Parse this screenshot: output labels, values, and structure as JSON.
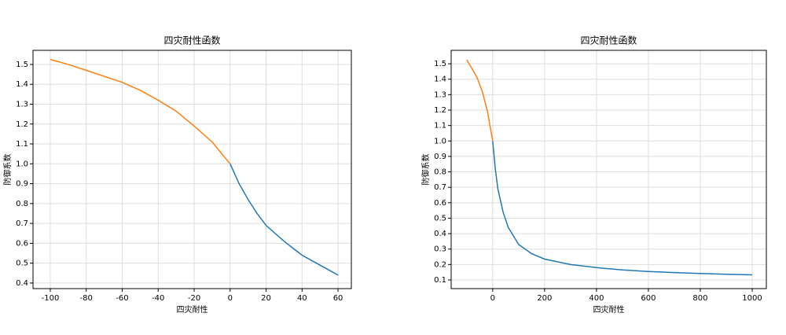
{
  "chart_data": [
    {
      "type": "line",
      "title": "四灾耐性函数",
      "xlabel": "四灾耐性",
      "ylabel": "防御系数",
      "grid": true,
      "xlim": [
        -109.6,
        67.4
      ],
      "ylim": [
        0.372,
        1.571
      ],
      "xticks": [
        -100,
        -80,
        -60,
        -40,
        -20,
        0,
        20,
        40,
        60
      ],
      "yticks": [
        0.4,
        0.5,
        0.6,
        0.7,
        0.8,
        0.9,
        {
          "value": 1,
          "label": "1.0"
        },
        1.1,
        1.2,
        1.3,
        1.4,
        1.5
      ],
      "series": [
        {
          "color": "#1f77b4",
          "x": [
            0,
            5,
            10,
            15,
            20,
            30,
            40,
            50,
            60
          ],
          "values": [
            1.0,
            0.9,
            0.82,
            0.75,
            0.69,
            0.61,
            0.54,
            0.49,
            0.44
          ]
        },
        {
          "color": "#ff7f0e",
          "x": [
            -100,
            -90,
            -80,
            -70,
            -60,
            -50,
            -40,
            -30,
            -20,
            -10,
            0
          ],
          "values": [
            1.525,
            1.5,
            1.47,
            1.44,
            1.41,
            1.37,
            1.32,
            1.265,
            1.19,
            1.11,
            1.0
          ]
        }
      ]
    },
    {
      "type": "line",
      "title": "四灾耐性函数",
      "xlabel": "四灾耐性",
      "ylabel": "防御系数",
      "grid": true,
      "xlim": [
        -160,
        1054.5
      ],
      "ylim": [
        0.044,
        1.587
      ],
      "xticks": [
        0,
        200,
        400,
        600,
        800,
        1000
      ],
      "yticks": [
        0.1,
        0.2,
        0.3,
        0.4,
        0.5,
        0.6,
        0.7,
        0.8,
        0.9,
        {
          "value": 1,
          "label": "1.0"
        },
        1.1,
        1.2,
        1.3,
        1.4,
        1.5
      ],
      "series": [
        {
          "color": "#1f77b4",
          "x": [
            0,
            10,
            20,
            40,
            60,
            100,
            150,
            200,
            300,
            400,
            500,
            600,
            700,
            800,
            900,
            1000
          ],
          "values": [
            1.0,
            0.82,
            0.69,
            0.54,
            0.44,
            0.33,
            0.27,
            0.235,
            0.2,
            0.18,
            0.165,
            0.155,
            0.148,
            0.142,
            0.137,
            0.133
          ]
        },
        {
          "color": "#ff7f0e",
          "x": [
            -100,
            -80,
            -60,
            -40,
            -20,
            0
          ],
          "values": [
            1.525,
            1.47,
            1.41,
            1.32,
            1.19,
            1.0
          ]
        }
      ]
    }
  ]
}
